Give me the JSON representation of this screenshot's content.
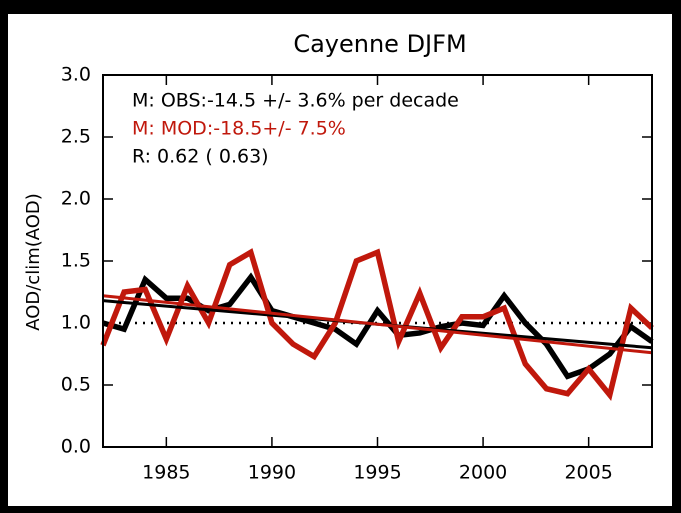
{
  "chart_data": {
    "type": "line",
    "title": "Cayenne DJFM",
    "y_label": "AOD/clim(AOD)",
    "annotations": [
      {
        "text": "M: OBS:-14.5 +/- 3.6% per decade",
        "color": "#000000"
      },
      {
        "text": "M: MOD:-18.5+/- 7.5%",
        "color": "#c0180c"
      },
      {
        "text": "R: 0.62 ( 0.63)",
        "color": "#000000"
      }
    ],
    "x": [
      1982,
      1983,
      1984,
      1985,
      1986,
      1987,
      1988,
      1989,
      1990,
      1991,
      1992,
      1993,
      1994,
      1995,
      1996,
      1997,
      1998,
      1999,
      2000,
      2001,
      2002,
      2003,
      2004,
      2005,
      2006,
      2007,
      2008
    ],
    "series": [
      {
        "color": "#000000",
        "values": [
          1.0,
          0.95,
          1.35,
          1.2,
          1.2,
          1.1,
          1.15,
          1.37,
          1.1,
          1.05,
          1.0,
          0.95,
          0.83,
          1.1,
          0.9,
          0.92,
          0.97,
          1.0,
          0.98,
          1.22,
          1.0,
          0.83,
          0.57,
          0.63,
          0.75,
          0.97,
          0.85
        ]
      },
      {
        "color": "#c0180c",
        "values": [
          0.82,
          1.25,
          1.27,
          0.87,
          1.3,
          1.0,
          1.47,
          1.57,
          1.0,
          0.83,
          0.73,
          1.0,
          1.5,
          1.57,
          0.85,
          1.24,
          0.8,
          1.05,
          1.05,
          1.12,
          0.67,
          0.47,
          0.43,
          0.63,
          0.42,
          1.12,
          0.96
        ]
      }
    ],
    "trends": [
      {
        "color": "#000000",
        "x": [
          1982,
          2008
        ],
        "values": [
          1.18,
          0.8
        ]
      },
      {
        "color": "#c0180c",
        "x": [
          1982,
          2008
        ],
        "values": [
          1.22,
          0.76
        ]
      }
    ],
    "hline": 1.0,
    "xlim": [
      1982,
      2008
    ],
    "xticks": [
      1985,
      1990,
      1995,
      2000,
      2005
    ],
    "ylim": [
      0.0,
      3.0
    ],
    "yticks": [
      {
        "value": 0,
        "label": "0.0"
      },
      0.5,
      {
        "value": 1,
        "label": "1.0"
      },
      1.5,
      {
        "value": 2,
        "label": "2.0"
      },
      2.5,
      {
        "value": 3,
        "label": "3.0"
      }
    ]
  }
}
